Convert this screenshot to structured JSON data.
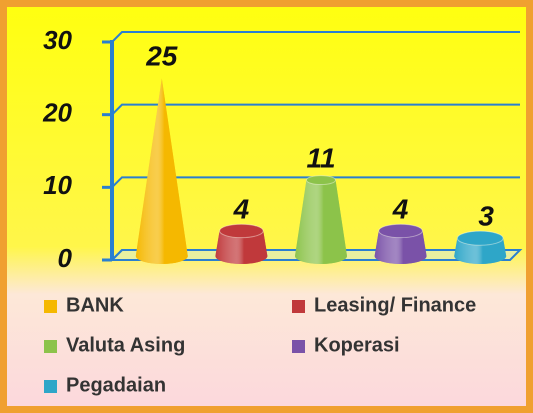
{
  "chart_data": {
    "type": "cone",
    "categories": [
      "BANK",
      "Leasing/ Finance",
      "Valuta Asing",
      "Koperasi",
      "Pegadaian"
    ],
    "values": [
      25,
      4,
      11,
      4,
      3
    ],
    "colors": [
      "#f5b800",
      "#c0393b",
      "#8cc34a",
      "#7a52a8",
      "#2ea6c8"
    ],
    "ylim": [
      0,
      30
    ],
    "yticks": [
      0,
      10,
      20,
      30
    ],
    "grid": true
  }
}
